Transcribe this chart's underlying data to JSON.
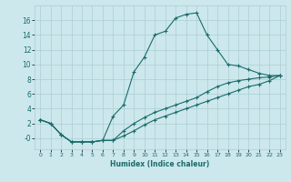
{
  "xlabel": "Humidex (Indice chaleur)",
  "bg_color": "#cce8ec",
  "grid_color": "#aacdd4",
  "line_color": "#1a6b6b",
  "xlim": [
    -0.5,
    23.5
  ],
  "ylim": [
    -1.5,
    18.0
  ],
  "xticks": [
    0,
    1,
    2,
    3,
    4,
    5,
    6,
    7,
    8,
    9,
    10,
    11,
    12,
    13,
    14,
    15,
    16,
    17,
    18,
    19,
    20,
    21,
    22,
    23
  ],
  "yticks": [
    0,
    2,
    4,
    6,
    8,
    10,
    12,
    14,
    16
  ],
  "series1_x": [
    0,
    1,
    2,
    3,
    4,
    5,
    6,
    7,
    8,
    9,
    10,
    11,
    12,
    13,
    14,
    15,
    16,
    17,
    18,
    19,
    20,
    21,
    22,
    23
  ],
  "series1_y": [
    2.5,
    2.0,
    0.5,
    -0.5,
    -0.5,
    -0.5,
    -0.3,
    3.0,
    4.5,
    9.0,
    11.0,
    14.0,
    14.5,
    16.3,
    16.8,
    17.0,
    14.0,
    12.0,
    10.0,
    9.8,
    9.3,
    8.8,
    8.5,
    8.5
  ],
  "series2_x": [
    0,
    1,
    2,
    3,
    4,
    5,
    6,
    7,
    8,
    9,
    10,
    11,
    12,
    13,
    14,
    15,
    16,
    17,
    18,
    19,
    20,
    21,
    22,
    23
  ],
  "series2_y": [
    2.5,
    2.0,
    0.5,
    -0.5,
    -0.5,
    -0.5,
    -0.3,
    -0.3,
    1.0,
    2.0,
    2.8,
    3.5,
    4.0,
    4.5,
    5.0,
    5.5,
    6.3,
    7.0,
    7.5,
    7.8,
    8.0,
    8.2,
    8.3,
    8.5
  ],
  "series3_x": [
    0,
    1,
    2,
    3,
    4,
    5,
    6,
    7,
    8,
    9,
    10,
    11,
    12,
    13,
    14,
    15,
    16,
    17,
    18,
    19,
    20,
    21,
    22,
    23
  ],
  "series3_y": [
    2.5,
    2.0,
    0.5,
    -0.5,
    -0.5,
    -0.5,
    -0.3,
    -0.3,
    0.3,
    1.0,
    1.8,
    2.5,
    3.0,
    3.5,
    4.0,
    4.5,
    5.0,
    5.5,
    6.0,
    6.5,
    7.0,
    7.3,
    7.8,
    8.5
  ]
}
